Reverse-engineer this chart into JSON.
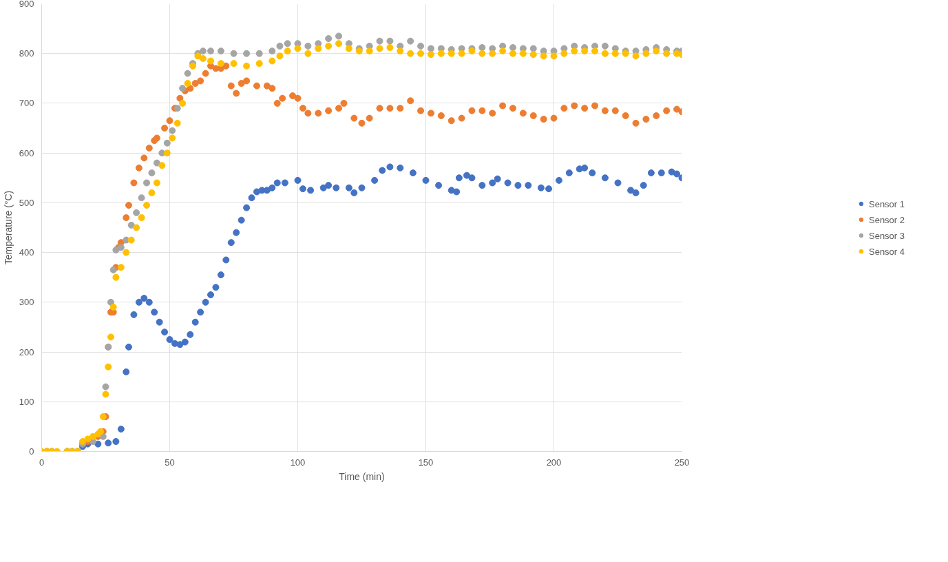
{
  "chart_data": {
    "type": "scatter",
    "xlabel": "Time (min)",
    "ylabel": "Temperature (°C)",
    "xlim": [
      0,
      250
    ],
    "ylim": [
      0,
      900
    ],
    "xticks": [
      0,
      50,
      100,
      150,
      200,
      250
    ],
    "yticks": [
      0,
      100,
      200,
      300,
      400,
      500,
      600,
      700,
      800,
      900
    ],
    "grid": true,
    "legend": "right",
    "marker": "circle",
    "series": [
      {
        "name": "Sensor 1",
        "color": "#4472c4",
        "x": [
          2,
          4,
          10,
          12,
          14,
          16,
          18,
          22,
          26,
          29,
          31,
          33,
          34,
          36,
          38,
          40,
          42,
          44,
          46,
          48,
          50,
          52,
          54,
          56,
          58,
          60,
          62,
          64,
          66,
          68,
          70,
          72,
          74,
          76,
          78,
          80,
          82,
          84,
          86,
          88,
          90,
          92,
          95,
          100,
          102,
          105,
          110,
          112,
          115,
          120,
          122,
          125,
          130,
          133,
          136,
          140,
          145,
          150,
          155,
          160,
          162,
          163,
          166,
          168,
          172,
          176,
          178,
          182,
          186,
          190,
          195,
          198,
          202,
          206,
          210,
          212,
          215,
          220,
          225,
          230,
          232,
          235,
          238,
          242,
          246,
          248,
          250
        ],
        "values": [
          0,
          0,
          0,
          0,
          0,
          10,
          15,
          15,
          17,
          20,
          45,
          160,
          210,
          275,
          300,
          308,
          300,
          280,
          260,
          240,
          225,
          217,
          215,
          220,
          235,
          260,
          280,
          300,
          315,
          330,
          355,
          385,
          420,
          440,
          465,
          490,
          510,
          522,
          525,
          525,
          530,
          540,
          540,
          545,
          528,
          525,
          530,
          535,
          530,
          530,
          520,
          530,
          545,
          565,
          572,
          570,
          560,
          545,
          535,
          525,
          522,
          550,
          555,
          550,
          535,
          540,
          548,
          540,
          535,
          535,
          530,
          528,
          545,
          560,
          568,
          570,
          560,
          550,
          540,
          525,
          520,
          535,
          560,
          560,
          562,
          558,
          550
        ]
      },
      {
        "name": "Sensor 2",
        "color": "#ed7d31",
        "x": [
          2,
          4,
          10,
          14,
          16,
          18,
          22,
          24,
          25,
          26,
          27,
          28,
          29,
          30,
          31,
          33,
          34,
          36,
          38,
          40,
          42,
          44,
          45,
          48,
          50,
          52,
          54,
          56,
          58,
          60,
          62,
          64,
          66,
          68,
          70,
          72,
          74,
          76,
          78,
          80,
          84,
          88,
          90,
          92,
          94,
          98,
          100,
          102,
          104,
          108,
          112,
          116,
          118,
          122,
          125,
          128,
          132,
          136,
          140,
          144,
          148,
          152,
          156,
          160,
          164,
          168,
          172,
          176,
          180,
          184,
          188,
          192,
          196,
          200,
          204,
          208,
          212,
          216,
          220,
          224,
          228,
          232,
          236,
          240,
          244,
          248,
          250
        ],
        "values": [
          0,
          0,
          0,
          0,
          15,
          20,
          30,
          40,
          70,
          210,
          280,
          280,
          370,
          410,
          420,
          470,
          495,
          540,
          570,
          590,
          610,
          625,
          630,
          650,
          665,
          690,
          710,
          725,
          730,
          740,
          745,
          760,
          775,
          770,
          770,
          775,
          735,
          720,
          740,
          745,
          735,
          735,
          730,
          700,
          710,
          715,
          710,
          690,
          680,
          680,
          685,
          690,
          700,
          670,
          660,
          670,
          690,
          690,
          690,
          705,
          685,
          680,
          675,
          665,
          670,
          685,
          685,
          680,
          695,
          690,
          680,
          675,
          668,
          670,
          690,
          695,
          690,
          695,
          685,
          685,
          675,
          660,
          668,
          675,
          685,
          688,
          683
        ]
      },
      {
        "name": "Sensor 3",
        "color": "#a5a5a5",
        "x": [
          4,
          10,
          14,
          16,
          20,
          24,
          25,
          26,
          27,
          28,
          29,
          31,
          33,
          35,
          37,
          39,
          41,
          43,
          45,
          47,
          49,
          51,
          53,
          55,
          57,
          59,
          61,
          63,
          66,
          70,
          75,
          80,
          85,
          90,
          93,
          96,
          100,
          104,
          108,
          112,
          116,
          120,
          124,
          128,
          132,
          136,
          140,
          144,
          148,
          152,
          156,
          160,
          164,
          168,
          172,
          176,
          180,
          184,
          188,
          192,
          196,
          200,
          204,
          208,
          212,
          216,
          220,
          224,
          228,
          232,
          236,
          240,
          244,
          248,
          250
        ],
        "values": [
          0,
          0,
          0,
          15,
          20,
          30,
          130,
          210,
          300,
          365,
          405,
          410,
          425,
          455,
          480,
          510,
          540,
          560,
          580,
          600,
          620,
          645,
          690,
          730,
          760,
          780,
          800,
          805,
          805,
          805,
          800,
          800,
          800,
          805,
          815,
          820,
          820,
          815,
          820,
          830,
          835,
          820,
          810,
          815,
          825,
          825,
          815,
          825,
          815,
          810,
          810,
          808,
          810,
          810,
          812,
          810,
          815,
          812,
          810,
          810,
          805,
          805,
          810,
          815,
          812,
          815,
          815,
          810,
          805,
          805,
          808,
          812,
          808,
          805,
          805
        ]
      },
      {
        "name": "Sensor 4",
        "color": "#ffc000",
        "x": [
          0,
          2,
          4,
          6,
          10,
          12,
          14,
          16,
          18,
          20,
          22,
          23,
          24,
          25,
          26,
          27,
          28,
          29,
          31,
          33,
          35,
          37,
          39,
          41,
          43,
          45,
          47,
          49,
          51,
          53,
          55,
          57,
          59,
          61,
          63,
          66,
          70,
          75,
          80,
          85,
          90,
          93,
          96,
          100,
          104,
          108,
          112,
          116,
          120,
          124,
          128,
          132,
          136,
          140,
          144,
          148,
          152,
          156,
          160,
          164,
          168,
          172,
          176,
          180,
          184,
          188,
          192,
          196,
          200,
          204,
          208,
          212,
          216,
          220,
          224,
          228,
          232,
          236,
          240,
          244,
          248,
          250
        ],
        "values": [
          0,
          0,
          0,
          0,
          0,
          0,
          0,
          20,
          25,
          30,
          35,
          40,
          70,
          115,
          170,
          230,
          290,
          350,
          370,
          400,
          425,
          450,
          470,
          495,
          520,
          540,
          575,
          600,
          630,
          660,
          700,
          740,
          775,
          795,
          790,
          785,
          780,
          780,
          775,
          780,
          785,
          795,
          805,
          810,
          800,
          810,
          815,
          820,
          810,
          805,
          805,
          810,
          812,
          805,
          800,
          800,
          798,
          800,
          800,
          800,
          805,
          800,
          800,
          805,
          800,
          800,
          798,
          795,
          795,
          800,
          805,
          805,
          805,
          800,
          800,
          800,
          795,
          800,
          805,
          800,
          800,
          798
        ]
      }
    ]
  }
}
